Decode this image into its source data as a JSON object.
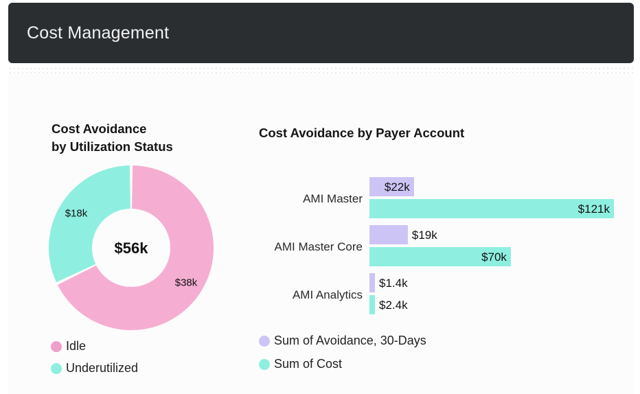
{
  "header": {
    "title": "Cost Management"
  },
  "donut": {
    "title_line1": "Cost Avoidance",
    "title_line2": "by Utilization Status",
    "center_label": "$56k"
  },
  "bars": {
    "title": "Cost Avoidance by Payer Account"
  },
  "colors": {
    "idle": "#f5aed1",
    "underutilized": "#8eefe0",
    "avoidance": "#cdc4f6",
    "cost": "#8eefe0"
  },
  "chart_data": [
    {
      "type": "pie",
      "title": "Cost Avoidance by Utilization Status",
      "center_text": "$56k",
      "slices": [
        {
          "name": "Idle",
          "value": 38,
          "label": "$38k",
          "color": "#f5aed1"
        },
        {
          "name": "Underutilized",
          "value": 18,
          "label": "$18k",
          "color": "#8eefe0"
        }
      ],
      "legend_position": "bottom"
    },
    {
      "type": "bar",
      "orientation": "horizontal",
      "title": "Cost Avoidance by Payer Account",
      "categories": [
        "AMI Master",
        "AMI Master Core",
        "AMI Analytics"
      ],
      "series": [
        {
          "name": "Sum of Avoidance, 30-Days",
          "values": [
            22,
            19,
            1.4
          ],
          "labels": [
            "$22k",
            "$19k",
            "$1.4k"
          ],
          "color": "#cdc4f6"
        },
        {
          "name": "Sum of Cost",
          "values": [
            121,
            70,
            2.4
          ],
          "labels": [
            "$121k",
            "$70k",
            "$2.4k"
          ],
          "color": "#8eefe0"
        }
      ],
      "units": "k USD",
      "xlim": [
        0,
        121
      ],
      "legend_position": "bottom"
    }
  ]
}
